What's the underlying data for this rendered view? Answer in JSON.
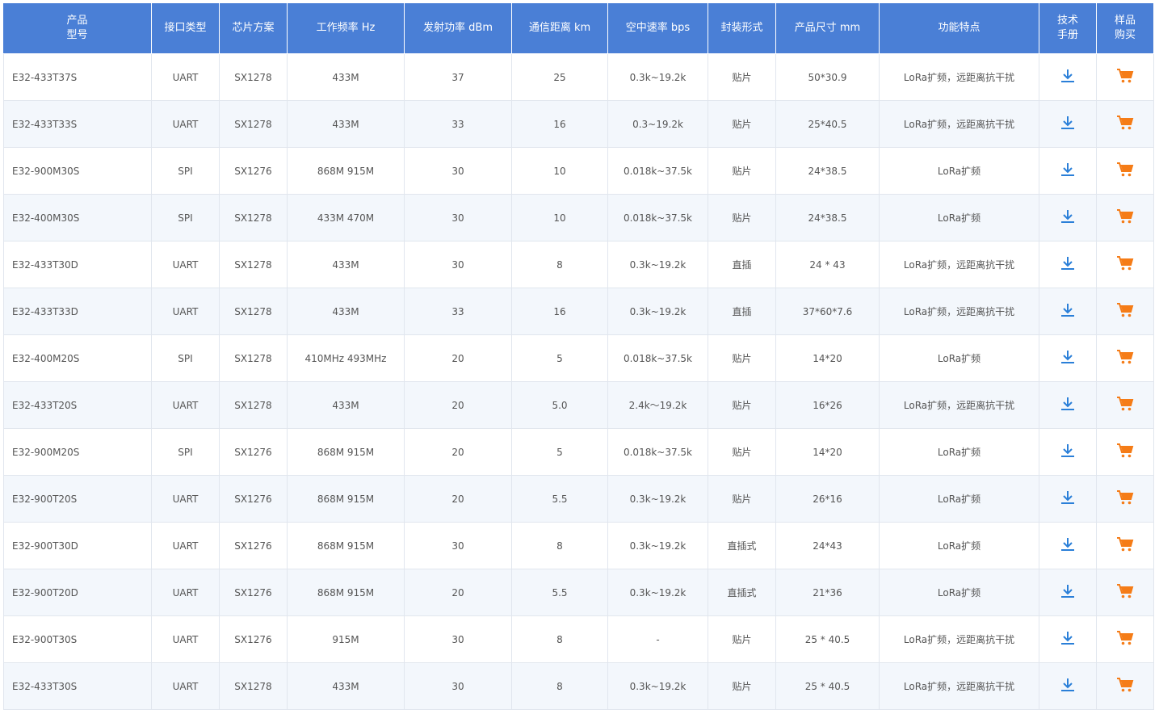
{
  "table": {
    "header": [
      [
        "产品",
        "型号"
      ],
      [
        "接口类型"
      ],
      [
        "芯片方案"
      ],
      [
        "工作频率 Hz"
      ],
      [
        "发射功率 dBm"
      ],
      [
        "通信距离 km"
      ],
      [
        "空中速率 bps"
      ],
      [
        "封装形式"
      ],
      [
        "产品尺寸 mm"
      ],
      [
        "功能特点"
      ],
      [
        "技术",
        "手册"
      ],
      [
        "样品",
        "购买"
      ]
    ],
    "rows": [
      [
        "E32-433T37S",
        "UART",
        "SX1278",
        "433M",
        "37",
        "25",
        "0.3k~19.2k",
        "贴片",
        "50*30.9",
        "LoRa扩频，远距离抗干扰"
      ],
      [
        "E32-433T33S",
        "UART",
        "SX1278",
        "433M",
        "33",
        "16",
        "0.3~19.2k",
        "贴片",
        "25*40.5",
        "LoRa扩频，远距离抗干扰"
      ],
      [
        "E32-900M30S",
        "SPI",
        "SX1276",
        "868M 915M",
        "30",
        "10",
        "0.018k~37.5k",
        "贴片",
        "24*38.5",
        "LoRa扩频"
      ],
      [
        "E32-400M30S",
        "SPI",
        "SX1278",
        "433M 470M",
        "30",
        "10",
        "0.018k~37.5k",
        "贴片",
        "24*38.5",
        "LoRa扩频"
      ],
      [
        "E32-433T30D",
        "UART",
        "SX1278",
        "433M",
        "30",
        "8",
        "0.3k~19.2k",
        "直插",
        "24 * 43",
        "LoRa扩频，远距离抗干扰"
      ],
      [
        "E32-433T33D",
        "UART",
        "SX1278",
        "433M",
        "33",
        "16",
        "0.3k~19.2k",
        "直插",
        "37*60*7.6",
        "LoRa扩频，远距离抗干扰"
      ],
      [
        "E32-400M20S",
        "SPI",
        "SX1278",
        "410MHz 493MHz",
        "20",
        "5",
        "0.018k~37.5k",
        "贴片",
        "14*20",
        "LoRa扩频"
      ],
      [
        "E32-433T20S",
        "UART",
        "SX1278",
        "433M",
        "20",
        "5.0",
        "2.4k～19.2k",
        "贴片",
        "16*26",
        "LoRa扩频，远距离抗干扰"
      ],
      [
        "E32-900M20S",
        "SPI",
        "SX1276",
        "868M 915M",
        "20",
        "5",
        "0.018k~37.5k",
        "贴片",
        "14*20",
        "LoRa扩频"
      ],
      [
        "E32-900T20S",
        "UART",
        "SX1276",
        "868M 915M",
        "20",
        "5.5",
        "0.3k~19.2k",
        "贴片",
        "26*16",
        "LoRa扩频"
      ],
      [
        "E32-900T30D",
        "UART",
        "SX1276",
        "868M 915M",
        "30",
        "8",
        "0.3k~19.2k",
        "直插式",
        "24*43",
        "LoRa扩频"
      ],
      [
        "E32-900T20D",
        "UART",
        "SX1276",
        "868M 915M",
        "20",
        "5.5",
        "0.3k~19.2k",
        "直插式",
        "21*36",
        "LoRa扩频"
      ],
      [
        "E32-900T30S",
        "UART",
        "SX1276",
        "915M",
        "30",
        "8",
        "-",
        "贴片",
        "25 * 40.5",
        "LoRa扩频，远距离抗干扰"
      ],
      [
        "E32-433T30S",
        "UART",
        "SX1278",
        "433M",
        "30",
        "8",
        "0.3k~19.2k",
        "贴片",
        "25 * 40.5",
        "LoRa扩频，远距离抗干扰"
      ]
    ]
  }
}
